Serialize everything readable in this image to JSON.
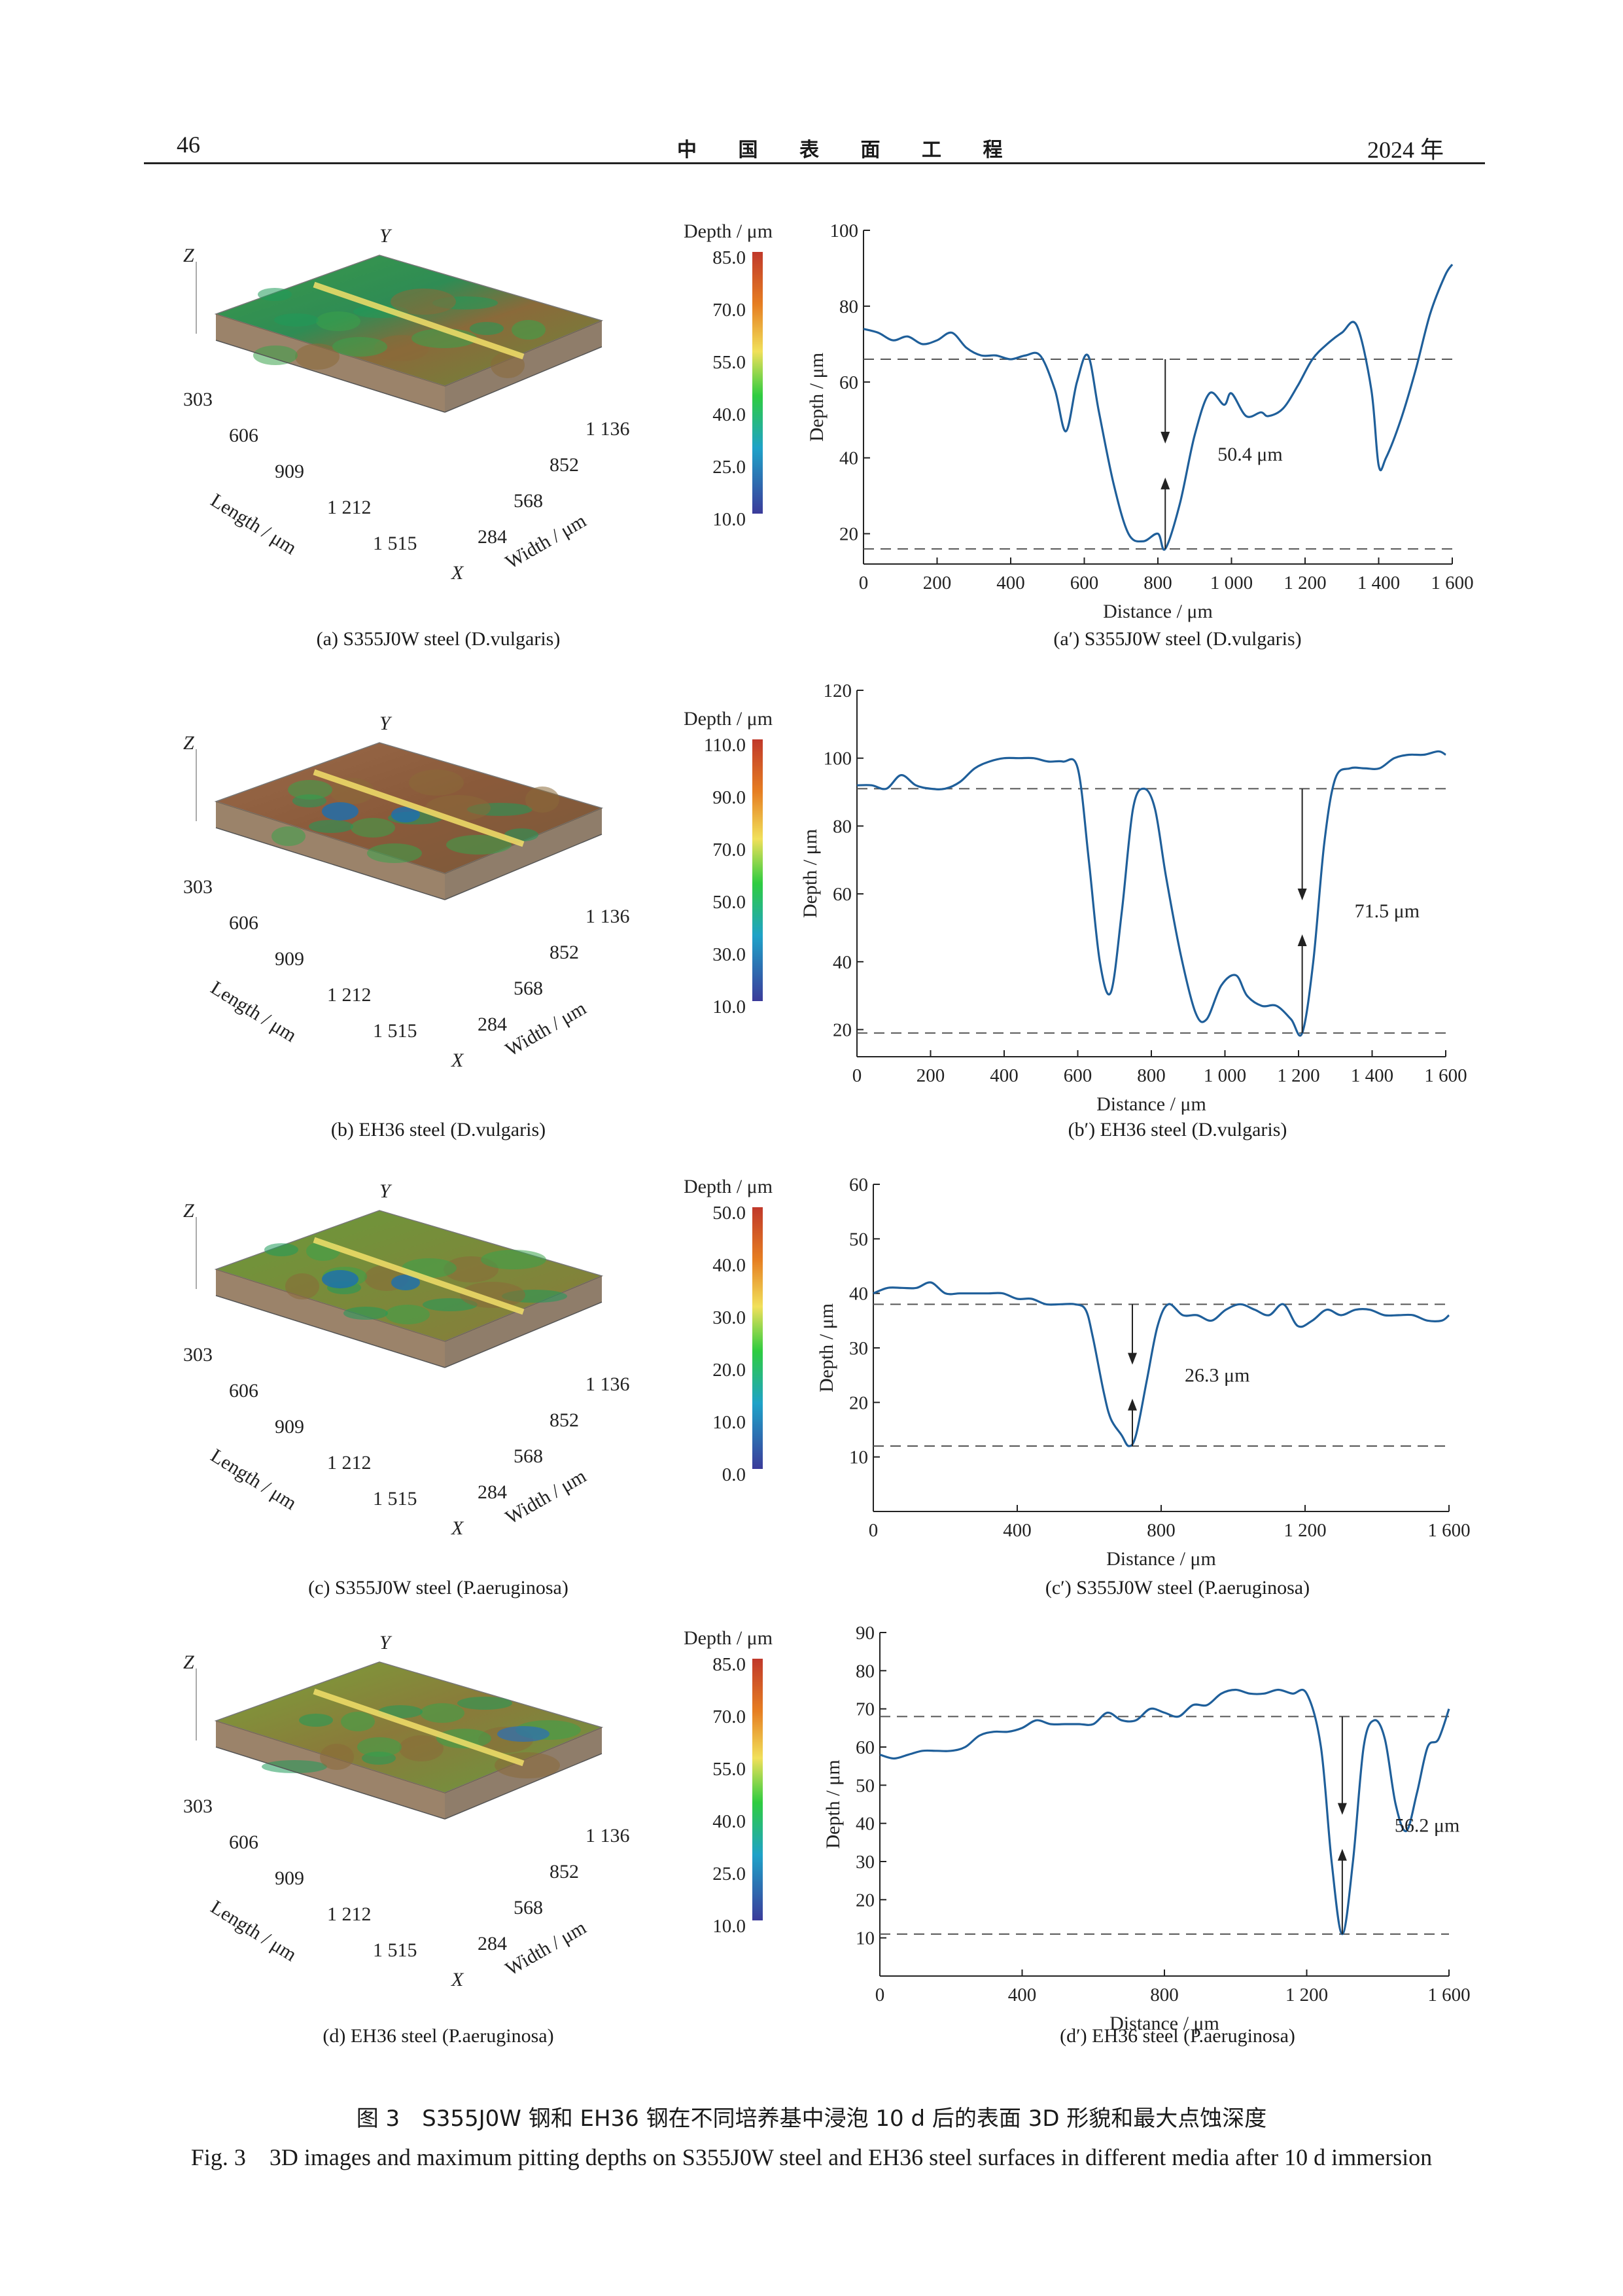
{
  "header": {
    "page_number": "46",
    "journal": "中 国 表 面 工 程",
    "year": "2024 年"
  },
  "colors": {
    "curve": "#1f5f9a",
    "text": "#1a1a1a",
    "dashed": "#555555"
  },
  "panels": [
    {
      "id": "a",
      "image_caption": "(a) S355J0W steel (D.vulgaris)",
      "colorbar": {
        "title": "Depth / μm",
        "ticks": [
          "85.0",
          "70.0",
          "55.0",
          "40.0",
          "25.0",
          "10.0"
        ]
      },
      "surface_labels": {
        "z": "Z",
        "y": "Y",
        "x": "X",
        "length_ticks": [
          "303",
          "606",
          "909",
          "1 212",
          "1 515"
        ],
        "width_ticks": [
          "284",
          "568",
          "852",
          "1 136"
        ],
        "length_label": "Length / μm",
        "width_label": "Width / μm"
      },
      "chart_caption": "(a′) S355J0W steel (D.vulgaris)",
      "chart_data": {
        "type": "line",
        "xlabel": "Distance / μm",
        "ylabel": "Depth / μm",
        "xlim": [
          0,
          1600
        ],
        "ylim": [
          12,
          100
        ],
        "xticks": [
          0,
          200,
          400,
          600,
          800,
          1000,
          1200,
          1400,
          1600
        ],
        "xtick_labels": [
          "0",
          "200",
          "400",
          "600",
          "800",
          "1 000",
          "1 200",
          "1 400",
          "1 600"
        ],
        "yticks": [
          20,
          40,
          60,
          80,
          100
        ],
        "ytick_labels": [
          "20",
          "40",
          "60",
          "80",
          "100"
        ],
        "x": [
          0,
          40,
          80,
          120,
          160,
          200,
          240,
          280,
          320,
          360,
          400,
          440,
          480,
          520,
          550,
          580,
          610,
          640,
          680,
          720,
          760,
          800,
          820,
          860,
          900,
          940,
          980,
          1000,
          1040,
          1080,
          1100,
          1140,
          1180,
          1220,
          1260,
          1300,
          1340,
          1380,
          1400,
          1420,
          1460,
          1500,
          1540,
          1580,
          1600
        ],
        "y": [
          74,
          73,
          71,
          72,
          70,
          71,
          73,
          69,
          67,
          67,
          66,
          67,
          67,
          58,
          47,
          60,
          67,
          52,
          33,
          20,
          18,
          20,
          16,
          28,
          46,
          57,
          54,
          57,
          51,
          52,
          51,
          53,
          59,
          66,
          70,
          73,
          75,
          58,
          38,
          40,
          50,
          63,
          78,
          88,
          91
        ],
        "dashed_lines": [
          66,
          16
        ],
        "annotation": {
          "label": "50.4 μm",
          "x": 820
        }
      }
    },
    {
      "id": "b",
      "image_caption": "(b) EH36 steel (D.vulgaris)",
      "colorbar": {
        "title": "Depth / μm",
        "ticks": [
          "110.0",
          "90.0",
          "70.0",
          "50.0",
          "30.0",
          "10.0"
        ]
      },
      "surface_labels": {
        "z": "Z",
        "y": "Y",
        "x": "X",
        "length_ticks": [
          "303",
          "606",
          "909",
          "1 212",
          "1 515"
        ],
        "width_ticks": [
          "284",
          "568",
          "852",
          "1 136"
        ],
        "length_label": "Length / μm",
        "width_label": "Width / μm"
      },
      "chart_caption": "(b′) EH36 steel (D.vulgaris)",
      "chart_data": {
        "type": "line",
        "xlabel": "Distance / μm",
        "ylabel": "Depth / μm",
        "xlim": [
          0,
          1600
        ],
        "ylim": [
          12,
          120
        ],
        "xticks": [
          0,
          200,
          400,
          600,
          800,
          1000,
          1200,
          1400,
          1600
        ],
        "xtick_labels": [
          "0",
          "200",
          "400",
          "600",
          "800",
          "1 000",
          "1 200",
          "1 400",
          "1 600"
        ],
        "yticks": [
          20,
          40,
          60,
          80,
          100,
          120
        ],
        "ytick_labels": [
          "20",
          "40",
          "60",
          "80",
          "100",
          "120"
        ],
        "x": [
          0,
          40,
          80,
          120,
          160,
          200,
          240,
          280,
          320,
          360,
          400,
          440,
          480,
          520,
          560,
          600,
          630,
          660,
          690,
          720,
          750,
          780,
          810,
          840,
          880,
          920,
          950,
          990,
          1030,
          1060,
          1100,
          1140,
          1180,
          1210,
          1240,
          1270,
          1300,
          1340,
          1380,
          1420,
          1460,
          1500,
          1540,
          1580,
          1600
        ],
        "y": [
          92,
          92,
          91,
          95,
          92,
          91,
          91,
          93,
          97,
          99,
          100,
          100,
          100,
          99,
          99,
          97,
          70,
          40,
          31,
          55,
          85,
          91,
          85,
          65,
          42,
          25,
          23,
          33,
          36,
          30,
          27,
          27,
          23,
          19,
          40,
          75,
          94,
          97,
          97,
          97,
          100,
          101,
          101,
          102,
          101
        ],
        "dashed_lines": [
          91,
          19
        ],
        "annotation": {
          "label": "71.5 μm",
          "x": 1210
        }
      }
    },
    {
      "id": "c",
      "image_caption": "(c) S355J0W steel (P.aeruginosa)",
      "colorbar": {
        "title": "Depth / μm",
        "ticks": [
          "50.0",
          "40.0",
          "30.0",
          "20.0",
          "10.0",
          "0.0"
        ]
      },
      "surface_labels": {
        "z": "Z",
        "y": "Y",
        "x": "X",
        "length_ticks": [
          "303",
          "606",
          "909",
          "1 212",
          "1 515"
        ],
        "width_ticks": [
          "284",
          "568",
          "852",
          "1 136"
        ],
        "length_label": "Length / μm",
        "width_label": "Width / μm"
      },
      "chart_caption": "(c′) S355J0W steel (P.aeruginosa)",
      "chart_data": {
        "type": "line",
        "xlabel": "Distance / μm",
        "ylabel": "Depth / μm",
        "xlim": [
          0,
          1600
        ],
        "ylim": [
          0,
          60
        ],
        "xticks": [
          0,
          400,
          800,
          1200,
          1600
        ],
        "xtick_labels": [
          "0",
          "400",
          "800",
          "1 200",
          "1 600"
        ],
        "yticks": [
          10,
          20,
          30,
          40,
          50,
          60
        ],
        "ytick_labels": [
          "10",
          "20",
          "30",
          "40",
          "50",
          "60"
        ],
        "x": [
          0,
          40,
          80,
          120,
          160,
          200,
          240,
          280,
          320,
          360,
          400,
          440,
          480,
          520,
          560,
          590,
          610,
          640,
          660,
          690,
          710,
          730,
          760,
          790,
          820,
          860,
          900,
          940,
          980,
          1020,
          1060,
          1100,
          1140,
          1180,
          1220,
          1260,
          1300,
          1340,
          1380,
          1420,
          1460,
          1500,
          1540,
          1580,
          1600
        ],
        "y": [
          40,
          41,
          41,
          41,
          42,
          40,
          40,
          40,
          40,
          40,
          39,
          39,
          38,
          38,
          38,
          37,
          32,
          22,
          17,
          14,
          12,
          14,
          24,
          34,
          38,
          36,
          36,
          35,
          37,
          38,
          37,
          36,
          38,
          34,
          35,
          37,
          36,
          37,
          37,
          36,
          36,
          36,
          35,
          35,
          36
        ],
        "dashed_lines": [
          38,
          12
        ],
        "annotation": {
          "label": "26.3 μm",
          "x": 720
        }
      }
    },
    {
      "id": "d",
      "image_caption": "(d) EH36 steel (P.aeruginosa)",
      "colorbar": {
        "title": "Depth / μm",
        "ticks": [
          "85.0",
          "70.0",
          "55.0",
          "40.0",
          "25.0",
          "10.0"
        ]
      },
      "surface_labels": {
        "z": "Z",
        "y": "Y",
        "x": "X",
        "length_ticks": [
          "303",
          "606",
          "909",
          "1 212",
          "1 515"
        ],
        "width_ticks": [
          "284",
          "568",
          "852",
          "1 136"
        ],
        "length_label": "Length / μm",
        "width_label": "Width / μm"
      },
      "chart_caption": "(d′) EH36 steel (P.aeruginosa)",
      "chart_data": {
        "type": "line",
        "xlabel": "Distance / μm",
        "ylabel": "Depth / μm",
        "xlim": [
          0,
          1600
        ],
        "ylim": [
          0,
          90
        ],
        "xticks": [
          0,
          400,
          800,
          1200,
          1600
        ],
        "xtick_labels": [
          "0",
          "400",
          "800",
          "1 200",
          "1 600"
        ],
        "yticks": [
          10,
          20,
          30,
          40,
          50,
          60,
          70,
          80,
          90
        ],
        "ytick_labels": [
          "10",
          "20",
          "30",
          "40",
          "50",
          "60",
          "70",
          "80",
          "90"
        ],
        "x": [
          0,
          40,
          80,
          120,
          160,
          200,
          240,
          280,
          320,
          360,
          400,
          440,
          480,
          520,
          560,
          600,
          640,
          680,
          720,
          760,
          800,
          840,
          880,
          920,
          960,
          1000,
          1040,
          1080,
          1120,
          1160,
          1200,
          1240,
          1270,
          1300,
          1330,
          1360,
          1390,
          1420,
          1450,
          1480,
          1510,
          1540,
          1570,
          1600
        ],
        "y": [
          58,
          57,
          58,
          59,
          59,
          59,
          60,
          63,
          64,
          64,
          65,
          67,
          66,
          66,
          66,
          66,
          69,
          67,
          67,
          70,
          69,
          68,
          71,
          71,
          74,
          75,
          74,
          74,
          75,
          74,
          74,
          60,
          30,
          11,
          30,
          60,
          67,
          62,
          45,
          38,
          48,
          60,
          62,
          70
        ],
        "dashed_lines": [
          68,
          11
        ],
        "annotation": {
          "label": "56.2 μm",
          "x": 1300
        }
      }
    }
  ],
  "figure_caption": {
    "zh": "图 3　S355J0W 钢和 EH36 钢在不同培养基中浸泡 10 d 后的表面 3D 形貌和最大点蚀深度",
    "en": "Fig. 3　3D images and maximum pitting depths on S355J0W steel and EH36 steel surfaces in different media after 10 d immersion"
  }
}
